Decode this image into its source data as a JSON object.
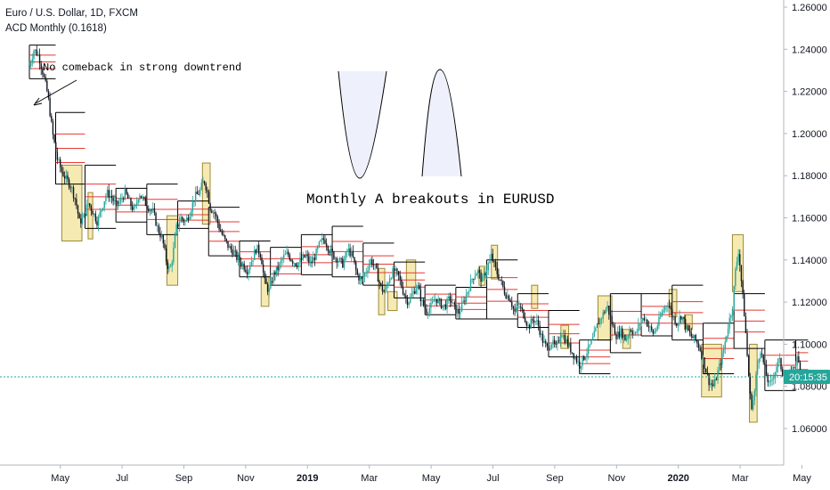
{
  "header": {
    "symbol_line": "Euro / U.S. Dollar, 1D, FXCM",
    "indicator_line": "ACD Monthly (0.1618)"
  },
  "price_label": "20:15:35",
  "colors": {
    "candle_up": "#26a69a",
    "candle_down": "#131722",
    "range_box": "#000000",
    "midline": "#e53935",
    "highlight_fill": "#f5eab2",
    "highlight_stroke": "#9c8a3a",
    "current_price_line": "#26a69a",
    "axis_border": "#b2b5be"
  },
  "annotations": {
    "arrow_note": "No comeback in strong downtrend",
    "title_note": "Monthly A breakouts in EURUSD"
  },
  "chart_data": {
    "type": "candlestick",
    "ylim": [
      1.05,
      1.265
    ],
    "y_ticks": [
      "1.06000",
      "1.08000",
      "1.10000",
      "1.12000",
      "1.14000",
      "1.16000",
      "1.18000",
      "1.20000",
      "1.22000",
      "1.24000",
      "1.26000"
    ],
    "x_ticks": [
      {
        "label": "May",
        "month_index": 1
      },
      {
        "label": "Jul",
        "month_index": 3
      },
      {
        "label": "Sep",
        "month_index": 5
      },
      {
        "label": "Nov",
        "month_index": 7
      },
      {
        "label": "2019",
        "month_index": 9,
        "bold": true
      },
      {
        "label": "Mar",
        "month_index": 11
      },
      {
        "label": "May",
        "month_index": 13
      },
      {
        "label": "Jul",
        "month_index": 15
      },
      {
        "label": "Sep",
        "month_index": 17
      },
      {
        "label": "Nov",
        "month_index": 19
      },
      {
        "label": "2020",
        "month_index": 21,
        "bold": true
      },
      {
        "label": "Mar",
        "month_index": 23
      },
      {
        "label": "May",
        "month_index": 25
      }
    ],
    "current_price": 1.0845,
    "price_path": [
      [
        0.0,
        1.232
      ],
      [
        0.15,
        1.24
      ],
      [
        0.3,
        1.237
      ],
      [
        0.45,
        1.228
      ],
      [
        0.6,
        1.218
      ],
      [
        0.75,
        1.2
      ],
      [
        0.9,
        1.188
      ],
      [
        1.05,
        1.182
      ],
      [
        1.2,
        1.178
      ],
      [
        1.35,
        1.175
      ],
      [
        1.5,
        1.168
      ],
      [
        1.62,
        1.158
      ],
      [
        1.75,
        1.16
      ],
      [
        1.9,
        1.167
      ],
      [
        2.05,
        1.163
      ],
      [
        2.2,
        1.158
      ],
      [
        2.35,
        1.165
      ],
      [
        2.5,
        1.172
      ],
      [
        2.65,
        1.17
      ],
      [
        2.8,
        1.166
      ],
      [
        2.95,
        1.168
      ],
      [
        3.1,
        1.172
      ],
      [
        3.25,
        1.167
      ],
      [
        3.4,
        1.163
      ],
      [
        3.55,
        1.172
      ],
      [
        3.7,
        1.168
      ],
      [
        3.85,
        1.165
      ],
      [
        4.0,
        1.163
      ],
      [
        4.15,
        1.155
      ],
      [
        4.3,
        1.15
      ],
      [
        4.45,
        1.138
      ],
      [
        4.55,
        1.135
      ],
      [
        4.65,
        1.143
      ],
      [
        4.75,
        1.155
      ],
      [
        4.9,
        1.16
      ],
      [
        5.05,
        1.158
      ],
      [
        5.2,
        1.163
      ],
      [
        5.35,
        1.17
      ],
      [
        5.5,
        1.172
      ],
      [
        5.65,
        1.178
      ],
      [
        5.75,
        1.173
      ],
      [
        5.85,
        1.165
      ],
      [
        6.0,
        1.162
      ],
      [
        6.15,
        1.155
      ],
      [
        6.3,
        1.15
      ],
      [
        6.45,
        1.146
      ],
      [
        6.6,
        1.144
      ],
      [
        6.75,
        1.14
      ],
      [
        6.9,
        1.138
      ],
      [
        7.05,
        1.135
      ],
      [
        7.2,
        1.14
      ],
      [
        7.35,
        1.146
      ],
      [
        7.5,
        1.142
      ],
      [
        7.6,
        1.13
      ],
      [
        7.75,
        1.125
      ],
      [
        7.9,
        1.133
      ],
      [
        8.05,
        1.136
      ],
      [
        8.2,
        1.141
      ],
      [
        8.35,
        1.143
      ],
      [
        8.5,
        1.14
      ],
      [
        8.65,
        1.138
      ],
      [
        8.8,
        1.14
      ],
      [
        8.95,
        1.142
      ],
      [
        9.1,
        1.138
      ],
      [
        9.25,
        1.142
      ],
      [
        9.4,
        1.148
      ],
      [
        9.55,
        1.15
      ],
      [
        9.7,
        1.145
      ],
      [
        9.85,
        1.142
      ],
      [
        10.0,
        1.14
      ],
      [
        10.15,
        1.138
      ],
      [
        10.3,
        1.145
      ],
      [
        10.45,
        1.142
      ],
      [
        10.6,
        1.133
      ],
      [
        10.75,
        1.13
      ],
      [
        10.9,
        1.135
      ],
      [
        11.05,
        1.14
      ],
      [
        11.2,
        1.136
      ],
      [
        11.35,
        1.128
      ],
      [
        11.5,
        1.124
      ],
      [
        11.65,
        1.132
      ],
      [
        11.8,
        1.135
      ],
      [
        11.95,
        1.132
      ],
      [
        12.1,
        1.125
      ],
      [
        12.25,
        1.12
      ],
      [
        12.4,
        1.124
      ],
      [
        12.55,
        1.128
      ],
      [
        12.7,
        1.12
      ],
      [
        12.85,
        1.116
      ],
      [
        13.0,
        1.118
      ],
      [
        13.15,
        1.122
      ],
      [
        13.3,
        1.119
      ],
      [
        13.45,
        1.118
      ],
      [
        13.6,
        1.122
      ],
      [
        13.75,
        1.117
      ],
      [
        13.9,
        1.115
      ],
      [
        14.05,
        1.12
      ],
      [
        14.2,
        1.126
      ],
      [
        14.35,
        1.132
      ],
      [
        14.5,
        1.135
      ],
      [
        14.65,
        1.13
      ],
      [
        14.8,
        1.136
      ],
      [
        14.95,
        1.142
      ],
      [
        15.1,
        1.135
      ],
      [
        15.25,
        1.13
      ],
      [
        15.4,
        1.124
      ],
      [
        15.55,
        1.122
      ],
      [
        15.7,
        1.115
      ],
      [
        15.85,
        1.118
      ],
      [
        16.0,
        1.114
      ],
      [
        16.15,
        1.108
      ],
      [
        16.3,
        1.112
      ],
      [
        16.45,
        1.11
      ],
      [
        16.6,
        1.102
      ],
      [
        16.75,
        1.098
      ],
      [
        16.9,
        1.101
      ],
      [
        17.05,
        1.098
      ],
      [
        17.2,
        1.106
      ],
      [
        17.35,
        1.102
      ],
      [
        17.5,
        1.098
      ],
      [
        17.65,
        1.094
      ],
      [
        17.8,
        1.09
      ],
      [
        17.95,
        1.094
      ],
      [
        18.1,
        1.098
      ],
      [
        18.25,
        1.103
      ],
      [
        18.4,
        1.11
      ],
      [
        18.55,
        1.114
      ],
      [
        18.7,
        1.118
      ],
      [
        18.85,
        1.11
      ],
      [
        19.0,
        1.104
      ],
      [
        19.15,
        1.106
      ],
      [
        19.3,
        1.102
      ],
      [
        19.45,
        1.108
      ],
      [
        19.6,
        1.104
      ],
      [
        19.75,
        1.11
      ],
      [
        19.9,
        1.113
      ],
      [
        20.05,
        1.108
      ],
      [
        20.2,
        1.105
      ],
      [
        20.35,
        1.11
      ],
      [
        20.5,
        1.116
      ],
      [
        20.65,
        1.12
      ],
      [
        20.8,
        1.114
      ],
      [
        20.95,
        1.11
      ],
      [
        21.1,
        1.114
      ],
      [
        21.25,
        1.108
      ],
      [
        21.4,
        1.104
      ],
      [
        21.55,
        1.102
      ],
      [
        21.7,
        1.098
      ],
      [
        21.85,
        1.09
      ],
      [
        22.0,
        1.082
      ],
      [
        22.15,
        1.08
      ],
      [
        22.3,
        1.088
      ],
      [
        22.45,
        1.096
      ],
      [
        22.6,
        1.108
      ],
      [
        22.75,
        1.118
      ],
      [
        22.85,
        1.135
      ],
      [
        22.95,
        1.145
      ],
      [
        23.05,
        1.128
      ],
      [
        23.15,
        1.112
      ],
      [
        23.25,
        1.09
      ],
      [
        23.35,
        1.07
      ],
      [
        23.45,
        1.075
      ],
      [
        23.55,
        1.09
      ],
      [
        23.65,
        1.098
      ],
      [
        23.8,
        1.088
      ],
      [
        23.95,
        1.08
      ],
      [
        24.1,
        1.086
      ],
      [
        24.25,
        1.093
      ],
      [
        24.4,
        1.085
      ],
      [
        24.55,
        1.083
      ],
      [
        24.7,
        1.088
      ],
      [
        24.85,
        1.093
      ],
      [
        25.0,
        1.086
      ],
      [
        25.1,
        1.084
      ]
    ],
    "acd_boxes": [
      {
        "m0": 0.0,
        "m1": 0.85,
        "hi": 1.242,
        "lo": 1.226,
        "mid": 1.234
      },
      {
        "m0": 0.85,
        "m1": 1.8,
        "hi": 1.21,
        "lo": 1.176,
        "mid": 1.193
      },
      {
        "m0": 1.8,
        "m1": 2.8,
        "hi": 1.185,
        "lo": 1.155,
        "mid": 1.17
      },
      {
        "m0": 2.8,
        "m1": 3.8,
        "hi": 1.174,
        "lo": 1.158,
        "mid": 1.166
      },
      {
        "m0": 3.8,
        "m1": 4.8,
        "hi": 1.176,
        "lo": 1.152,
        "mid": 1.164
      },
      {
        "m0": 4.8,
        "m1": 5.8,
        "hi": 1.168,
        "lo": 1.155,
        "mid": 1.161
      },
      {
        "m0": 5.8,
        "m1": 6.8,
        "hi": 1.165,
        "lo": 1.142,
        "mid": 1.153
      },
      {
        "m0": 6.8,
        "m1": 7.8,
        "hi": 1.149,
        "lo": 1.132,
        "mid": 1.14
      },
      {
        "m0": 7.8,
        "m1": 8.8,
        "hi": 1.146,
        "lo": 1.128,
        "mid": 1.137
      },
      {
        "m0": 8.8,
        "m1": 9.8,
        "hi": 1.152,
        "lo": 1.133,
        "mid": 1.142
      },
      {
        "m0": 9.8,
        "m1": 10.8,
        "hi": 1.156,
        "lo": 1.132,
        "mid": 1.144
      },
      {
        "m0": 10.8,
        "m1": 11.8,
        "hi": 1.148,
        "lo": 1.128,
        "mid": 1.138
      },
      {
        "m0": 11.8,
        "m1": 12.8,
        "hi": 1.139,
        "lo": 1.122,
        "mid": 1.131
      },
      {
        "m0": 12.8,
        "m1": 13.8,
        "hi": 1.128,
        "lo": 1.114,
        "mid": 1.121
      },
      {
        "m0": 13.8,
        "m1": 14.8,
        "hi": 1.127,
        "lo": 1.112,
        "mid": 1.12
      },
      {
        "m0": 14.8,
        "m1": 15.8,
        "hi": 1.14,
        "lo": 1.112,
        "mid": 1.126
      },
      {
        "m0": 15.8,
        "m1": 16.8,
        "hi": 1.124,
        "lo": 1.108,
        "mid": 1.116
      },
      {
        "m0": 16.8,
        "m1": 17.8,
        "hi": 1.116,
        "lo": 1.094,
        "mid": 1.105
      },
      {
        "m0": 17.8,
        "m1": 18.8,
        "hi": 1.102,
        "lo": 1.086,
        "mid": 1.094
      },
      {
        "m0": 18.8,
        "m1": 19.8,
        "hi": 1.124,
        "lo": 1.096,
        "mid": 1.11
      },
      {
        "m0": 19.8,
        "m1": 20.8,
        "hi": 1.124,
        "lo": 1.104,
        "mid": 1.114
      },
      {
        "m0": 20.8,
        "m1": 21.8,
        "hi": 1.128,
        "lo": 1.102,
        "mid": 1.115
      },
      {
        "m0": 21.8,
        "m1": 22.8,
        "hi": 1.11,
        "lo": 1.086,
        "mid": 1.098
      },
      {
        "m0": 22.8,
        "m1": 23.8,
        "hi": 1.124,
        "lo": 1.098,
        "mid": 1.111
      },
      {
        "m0": 23.8,
        "m1": 24.8,
        "hi": 1.102,
        "lo": 1.078,
        "mid": 1.09
      },
      {
        "m0": 24.8,
        "m1": 25.2,
        "hi": 1.102,
        "lo": 1.082,
        "mid": 1.092
      }
    ],
    "breakout_highlights": [
      {
        "m0": 1.05,
        "m1": 1.7,
        "hi": 1.185,
        "lo": 1.149
      },
      {
        "m0": 1.9,
        "m1": 2.05,
        "hi": 1.172,
        "lo": 1.15
      },
      {
        "m0": 4.45,
        "m1": 4.8,
        "hi": 1.161,
        "lo": 1.128
      },
      {
        "m0": 5.6,
        "m1": 5.85,
        "hi": 1.186,
        "lo": 1.157
      },
      {
        "m0": 7.5,
        "m1": 7.75,
        "hi": 1.132,
        "lo": 1.118
      },
      {
        "m0": 11.3,
        "m1": 11.5,
        "hi": 1.136,
        "lo": 1.114
      },
      {
        "m0": 11.6,
        "m1": 11.9,
        "hi": 1.125,
        "lo": 1.116
      },
      {
        "m0": 12.2,
        "m1": 12.5,
        "hi": 1.14,
        "lo": 1.127
      },
      {
        "m0": 14.55,
        "m1": 14.75,
        "hi": 1.137,
        "lo": 1.128
      },
      {
        "m0": 14.95,
        "m1": 15.15,
        "hi": 1.147,
        "lo": 1.131
      },
      {
        "m0": 16.25,
        "m1": 16.45,
        "hi": 1.128,
        "lo": 1.117
      },
      {
        "m0": 17.2,
        "m1": 17.45,
        "hi": 1.109,
        "lo": 1.098
      },
      {
        "m0": 18.4,
        "m1": 18.85,
        "hi": 1.123,
        "lo": 1.102
      },
      {
        "m0": 19.2,
        "m1": 19.45,
        "hi": 1.107,
        "lo": 1.098
      },
      {
        "m0": 20.7,
        "m1": 20.95,
        "hi": 1.126,
        "lo": 1.113
      },
      {
        "m0": 21.2,
        "m1": 21.45,
        "hi": 1.114,
        "lo": 1.107
      },
      {
        "m0": 21.75,
        "m1": 22.4,
        "hi": 1.1,
        "lo": 1.075
      },
      {
        "m0": 22.75,
        "m1": 23.1,
        "hi": 1.152,
        "lo": 1.125
      },
      {
        "m0": 23.3,
        "m1": 23.55,
        "hi": 1.1,
        "lo": 1.063
      }
    ]
  }
}
